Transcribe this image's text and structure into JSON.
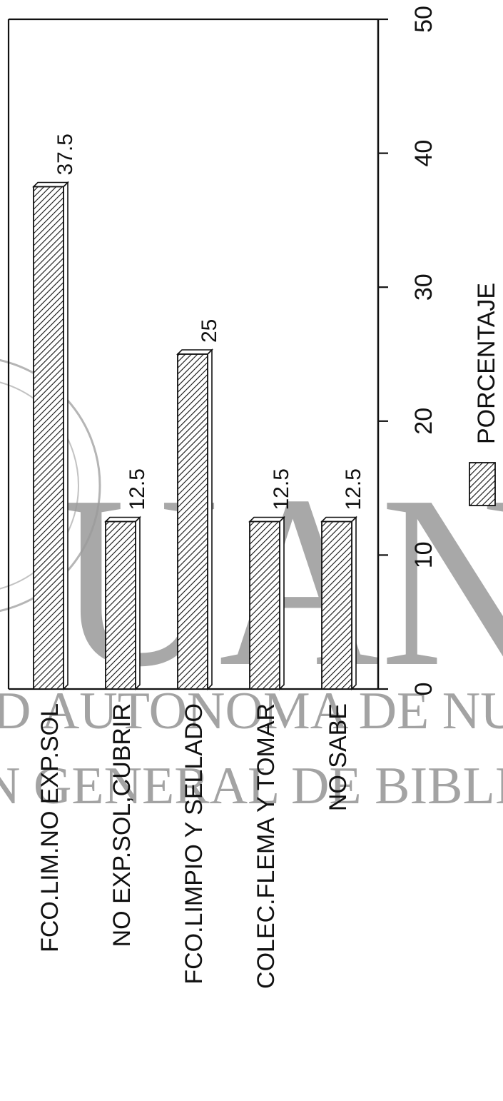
{
  "chart_data": {
    "type": "bar",
    "orientation": "horizontal",
    "categories": [
      "FCO.LIM.NO EXP.SOL",
      "NO EXP.SOL,CUBRIR",
      "FCO.LIMPIO Y SELLADO",
      "COLEC.FLEMA Y TOMAR",
      "NO SABE"
    ],
    "series": [
      {
        "name": "PORCENTAJE",
        "values": [
          37.5,
          12.5,
          25,
          12.5,
          12.5
        ]
      }
    ],
    "value_labels": [
      "37.5",
      "12.5",
      "25",
      "12.5",
      "12.5"
    ],
    "ylim": [
      0,
      50
    ],
    "ticks": [
      0,
      10,
      20,
      30,
      40,
      50
    ],
    "tick_labels": [
      "0",
      "10",
      "20",
      "30",
      "40",
      "50"
    ],
    "legend": {
      "label": "PORCENTAJE",
      "position": "bottom-right"
    },
    "grid": false,
    "bar_pattern": "diagonal-hatch",
    "rotation": "90deg-counterclockwise"
  },
  "watermark": {
    "big_text": "UAN",
    "line1": "D AUTONOMA DE NUEVO",
    "line2": "N GENERAL DE BIBLIOTECAS"
  },
  "colors": {
    "ink": "#111111",
    "watermark": "#9a9a9a",
    "background": "#ffffff"
  }
}
